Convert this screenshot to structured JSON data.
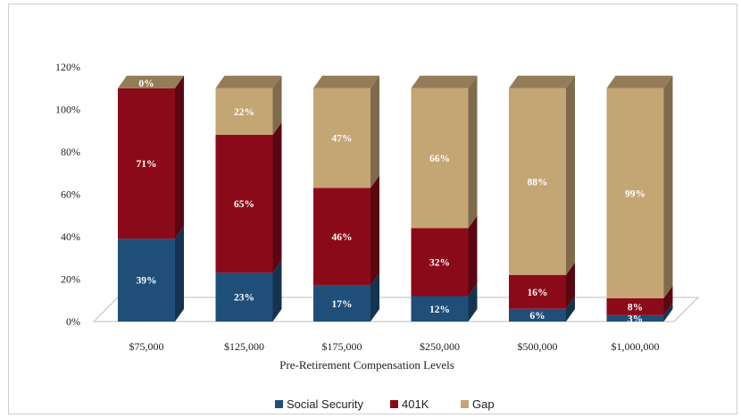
{
  "chart_data": {
    "type": "bar",
    "stacked": true,
    "three_d": true,
    "categories": [
      "$75,000",
      "$125,000",
      "$175,000",
      "$250,000",
      "$500,000",
      "$1,000,000"
    ],
    "series": [
      {
        "name": "Social Security",
        "color": "#1f4e79",
        "values": [
          39,
          23,
          17,
          12,
          6,
          3
        ],
        "labels": [
          "39%",
          "23%",
          "17%",
          "12%",
          "6%",
          "3%"
        ]
      },
      {
        "name": "401K",
        "color": "#8b0a1a",
        "values": [
          71,
          65,
          46,
          32,
          16,
          8
        ],
        "labels": [
          "71%",
          "65%",
          "46%",
          "32%",
          "16%",
          "8%"
        ]
      },
      {
        "name": "Gap",
        "color": "#c4a574",
        "values": [
          0,
          22,
          47,
          66,
          88,
          99
        ],
        "labels": [
          "0%",
          "22%",
          "47%",
          "66%",
          "88%",
          "99%"
        ]
      }
    ],
    "xlabel": "Pre-Retirement  Compensation Levels",
    "ylabel": "",
    "ylim": [
      0,
      120
    ],
    "yticks": [
      0,
      20,
      40,
      60,
      80,
      100,
      120
    ],
    "ytick_labels": [
      "0%",
      "20%",
      "40%",
      "60%",
      "80%",
      "100%",
      "120%"
    ],
    "legend_position": "bottom",
    "grid": false
  }
}
